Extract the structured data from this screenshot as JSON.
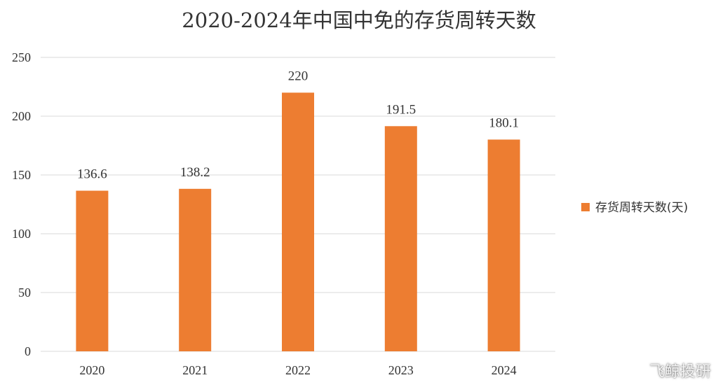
{
  "chart_data": {
    "type": "bar",
    "title": "2020-2024年中国中免的存货周转天数",
    "categories": [
      "2020",
      "2021",
      "2022",
      "2023",
      "2024"
    ],
    "series": [
      {
        "name": "存货周转天数(天)",
        "values": [
          136.6,
          138.2,
          220,
          191.5,
          180.1
        ],
        "labels": [
          "136.6",
          "138.2",
          "220",
          "191.5",
          "180.1"
        ],
        "color": "#ed7d31"
      }
    ],
    "yticks": [
      "0",
      "50",
      "100",
      "150",
      "200",
      "250"
    ],
    "ylim": [
      0,
      250
    ],
    "grid": true,
    "legend_position": "right"
  },
  "watermark": {
    "text": "飞鲸投研",
    "icon": "weibo-icon"
  }
}
